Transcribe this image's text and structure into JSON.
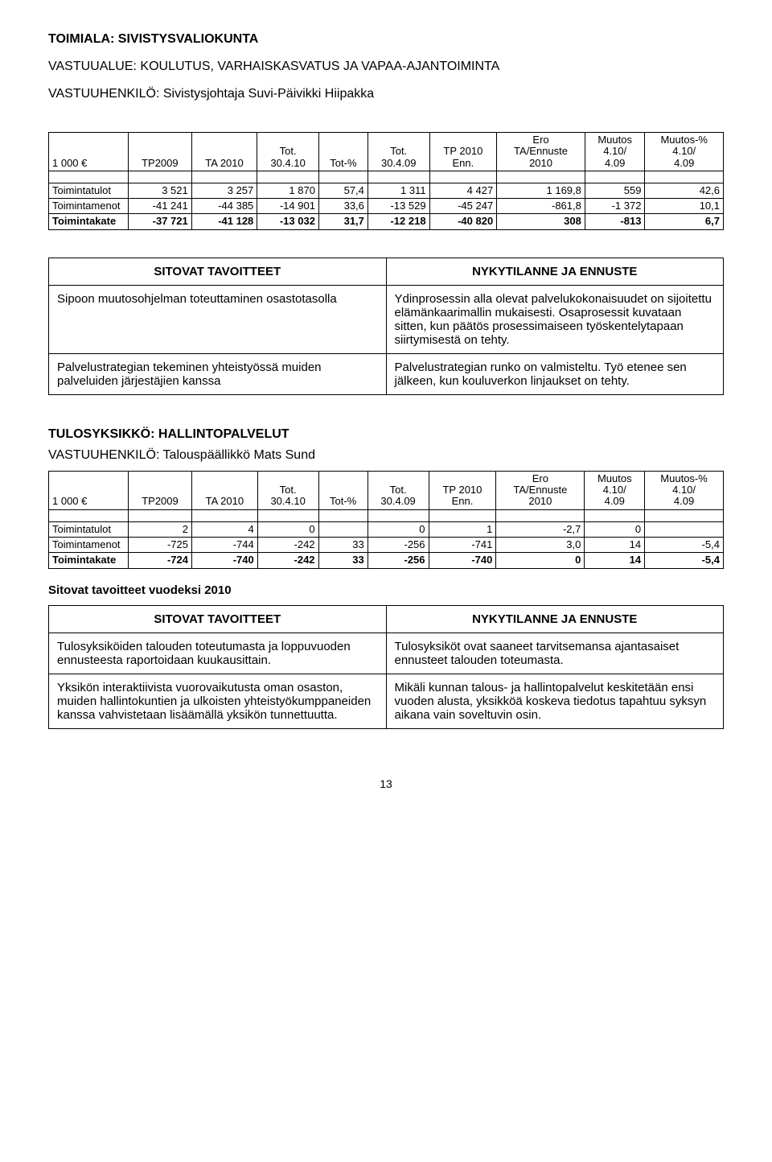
{
  "header": {
    "toimiala": "TOIMIALA: SIVISTYSVALIOKUNTA",
    "vastuualue": "VASTUUALUE: KOULUTUS, VARHAISKASVATUS JA VAPAA-AJANTOIMINTA",
    "vastuuhenkilo": "VASTUUHENKILÖ: Sivistysjohtaja Suvi-Päivikki Hiipakka"
  },
  "fin_columns": {
    "c0": "1 000 €",
    "c1": "TP2009",
    "c2": "TA 2010",
    "c3a": "Tot.",
    "c3b": "30.4.10",
    "c4": "Tot-%",
    "c5a": "Tot.",
    "c5b": "30.4.09",
    "c6a": "TP 2010",
    "c6b": "Enn.",
    "c7a": "Ero",
    "c7b": "TA/Ennuste",
    "c7c": "2010",
    "c8a": "Muutos",
    "c8b": "4.10/",
    "c8c": "4.09",
    "c9a": "Muutos-%",
    "c9b": "4.10/",
    "c9c": "4.09"
  },
  "fin1": {
    "r0": {
      "label": "Toimintatulot",
      "v": [
        "3 521",
        "3 257",
        "1 870",
        "57,4",
        "1 311",
        "4 427",
        "1 169,8",
        "559",
        "42,6"
      ]
    },
    "r1": {
      "label": "Toimintamenot",
      "v": [
        "-41 241",
        "-44 385",
        "-14 901",
        "33,6",
        "-13 529",
        "-45 247",
        "-861,8",
        "-1 372",
        "10,1"
      ]
    },
    "r2": {
      "label": "Toimintakate",
      "v": [
        "-37 721",
        "-41 128",
        "-13 032",
        "31,7",
        "-12 218",
        "-40 820",
        "308",
        "-813",
        "6,7"
      ]
    }
  },
  "goals_headers": {
    "left": "SITOVAT TAVOITTEET",
    "right": "NYKYTILANNE JA ENNUSTE"
  },
  "goals1": {
    "r0": {
      "left": "Sipoon muutosohjelman toteuttaminen osastotasolla",
      "right": "Ydinprosessin alla olevat palvelukokonaisuudet on sijoitettu elämänkaarimallin mukaisesti. Osaprosessit kuvataan sitten, kun päätös prosessimaiseen työskentelytapaan siirtymisestä on tehty."
    },
    "r1": {
      "left": "Palvelustrategian tekeminen yhteistyössä muiden palveluiden järjestäjien kanssa",
      "right": "Palvelustrategian runko on valmisteltu. Työ etenee sen jälkeen, kun kouluverkon linjaukset on tehty."
    }
  },
  "section2": {
    "title": "TULOSYKSIKKÖ: HALLINTOPALVELUT",
    "vastuuhenkilo": "VASTUUHENKILÖ: Talouspäällikkö Mats Sund"
  },
  "fin2": {
    "r0": {
      "label": "Toimintatulot",
      "v": [
        "2",
        "4",
        "0",
        "",
        "0",
        "1",
        "-2,7",
        "0",
        ""
      ]
    },
    "r1": {
      "label": "Toimintamenot",
      "v": [
        "-725",
        "-744",
        "-242",
        "33",
        "-256",
        "-741",
        "3,0",
        "14",
        "-5,4"
      ]
    },
    "r2": {
      "label": "Toimintakate",
      "v": [
        "-724",
        "-740",
        "-242",
        "33",
        "-256",
        "-740",
        "0",
        "14",
        "-5,4"
      ]
    }
  },
  "sitovat_title": "Sitovat tavoitteet vuodeksi 2010",
  "goals2": {
    "r0": {
      "left": "Tulosyksiköiden talouden toteutumasta ja loppuvuoden ennusteesta raportoidaan kuukausittain.",
      "right": "Tulosyksiköt ovat saaneet tarvitsemansa ajantasaiset ennusteet talouden toteumasta."
    },
    "r1": {
      "left": "Yksikön interaktiivista vuorovaikutusta oman osaston, muiden hallintokuntien ja ulkoisten yhteistyökumppaneiden kanssa vahvistetaan lisäämällä yksikön tunnettuutta.",
      "right": "Mikäli kunnan talous- ja hallintopalvelut keskitetään ensi vuoden alusta, yksikköä koskeva tiedotus tapahtuu syksyn aikana vain soveltuvin osin."
    }
  },
  "page_number": "13",
  "style": {
    "border_color": "#000000",
    "background": "#ffffff",
    "font_size_body": 15,
    "font_size_table": 13
  }
}
